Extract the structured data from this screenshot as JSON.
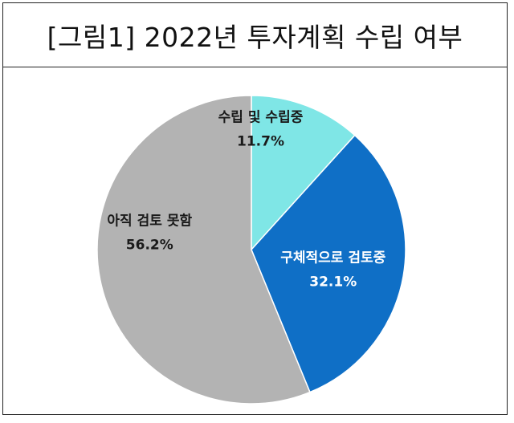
{
  "title": "[그림1] 2022년 투자계획 수립 여부",
  "chart_data": {
    "type": "pie",
    "title": "",
    "start_angle_deg": 0,
    "direction": "clockwise",
    "slices": [
      {
        "label": "수립 및 수립중",
        "value": 11.7,
        "value_label": "11.7%",
        "color": "#7fe6e6",
        "text_color": "#1a1a1a"
      },
      {
        "label": "구체적으로 검토중",
        "value": 32.1,
        "value_label": "32.1%",
        "color": "#0f6fc6",
        "text_color": "#ffffff"
      },
      {
        "label": "아직 검토 못함",
        "value": 56.2,
        "value_label": "56.2%",
        "color": "#b3b3b3",
        "text_color": "#1a1a1a"
      }
    ]
  }
}
